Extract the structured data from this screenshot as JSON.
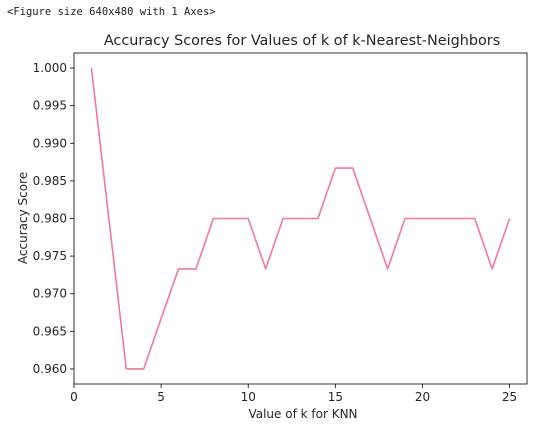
{
  "figure_repr": "<Figure size 640x480 with 1 Axes>",
  "chart_data": {
    "type": "line",
    "title": "Accuracy Scores for Values of k of k-Nearest-Neighbors",
    "xlabel": "Value of k for KNN",
    "ylabel": "Accuracy Score",
    "xlim": [
      0,
      26
    ],
    "ylim": [
      0.958,
      1.002
    ],
    "xticks": [
      0,
      5,
      10,
      15,
      20,
      25
    ],
    "yticks": [
      0.96,
      0.965,
      0.97,
      0.975,
      0.98,
      0.985,
      0.99,
      0.995,
      1.0
    ],
    "ytick_labels": [
      "0.960",
      "0.965",
      "0.970",
      "0.975",
      "0.980",
      "0.985",
      "0.990",
      "0.995",
      "1.000"
    ],
    "grid": false,
    "series": [
      {
        "color": "#f07a9a",
        "x": [
          1,
          2,
          3,
          4,
          5,
          6,
          7,
          8,
          9,
          10,
          11,
          12,
          13,
          14,
          15,
          16,
          17,
          18,
          19,
          20,
          21,
          22,
          23,
          24,
          25
        ],
        "y": [
          1.0,
          0.98,
          0.96,
          0.96,
          0.9667,
          0.9733,
          0.9733,
          0.98,
          0.98,
          0.98,
          0.9733,
          0.98,
          0.98,
          0.98,
          0.9867,
          0.9867,
          0.98,
          0.9733,
          0.98,
          0.98,
          0.98,
          0.98,
          0.98,
          0.9733,
          0.98
        ]
      }
    ]
  }
}
